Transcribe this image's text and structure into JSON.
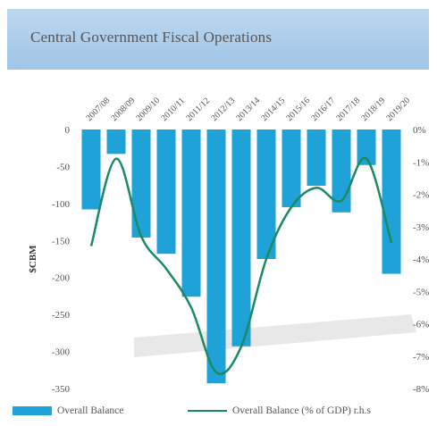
{
  "header": {
    "title": "Central Government Fiscal Operations"
  },
  "colors": {
    "bar": "#1fa2d8",
    "line": "#1a8a63",
    "banner": "#a9cde9",
    "shadow": "#bdbdbd"
  },
  "chart_data": {
    "type": "bar",
    "title": "Central Government Fiscal Operations",
    "categories": [
      "2007/08",
      "2008/09",
      "2009/10",
      "2010/11",
      "2011/12",
      "2012/13",
      "2013/14",
      "2014/15",
      "2015/16",
      "2016/17",
      "2017/18",
      "2018/19",
      "2019/20"
    ],
    "ylabel": "$CBM",
    "ylim": [
      -350,
      0
    ],
    "yticks": [
      0,
      -50,
      -100,
      -150,
      -200,
      -250,
      -300,
      -350
    ],
    "y2lim": [
      -0.08,
      0
    ],
    "y2ticks": [
      "0%",
      "-1%",
      "-2%",
      "-3%",
      "-4%",
      "-5%",
      "-6%",
      "-7%",
      "-8%"
    ],
    "series": [
      {
        "name": "Overall Balance",
        "type": "bar",
        "values": [
          -108,
          -33,
          -146,
          -168,
          -226,
          -343,
          -293,
          -175,
          -105,
          -76,
          -112,
          -48,
          -195
        ]
      },
      {
        "name": "Overall Balance (% of GDP) r.h.s",
        "type": "line",
        "axis": "right",
        "values": [
          -3.6,
          -0.9,
          -3.3,
          -4.3,
          -5.5,
          -7.5,
          -6.7,
          -4.0,
          -2.4,
          -1.8,
          -2.2,
          -0.9,
          -3.5
        ]
      }
    ],
    "legend": "bottom",
    "grid": false
  }
}
